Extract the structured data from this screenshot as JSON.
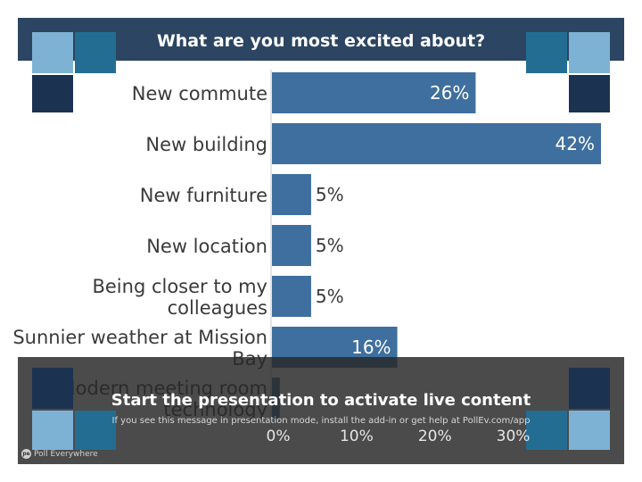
{
  "colors": {
    "banner": "#2b4562",
    "bar": "#3f6f9e",
    "tile_light": "#7eb2d4",
    "tile_mid": "#236d93",
    "tile_dark": "#1b3350",
    "overlay": "#3a3a3a"
  },
  "chart_data": {
    "type": "bar",
    "orientation": "horizontal",
    "title": "What are you most excited about?",
    "categories": [
      "New commute",
      "New building",
      "New furniture",
      "New location",
      "Being closer to my colleagues",
      "Sunnier weather at Mission Bay",
      "Modern meeting room technology"
    ],
    "category_lines": [
      [
        "New commute"
      ],
      [
        "New building"
      ],
      [
        "New furniture"
      ],
      [
        "New location"
      ],
      [
        "Being closer to my",
        "colleagues"
      ],
      [
        "Sunnier weather at Mission",
        "Bay"
      ],
      [
        "Modern meeting room",
        "technology"
      ]
    ],
    "values": [
      26,
      42,
      5,
      5,
      5,
      16,
      1
    ],
    "value_labels": [
      "26%",
      "42%",
      "5%",
      "5%",
      "5%",
      "16%",
      ""
    ],
    "xticks": [
      0,
      10,
      20,
      30
    ],
    "xtick_labels": [
      "0%",
      "10%",
      "20%",
      "30%"
    ],
    "xlim": [
      0,
      42
    ]
  },
  "overlay": {
    "title": "Start the presentation to activate live content",
    "subtitle": "If you see this message in presentation mode, install the add-in or get help at PollEv.com/app"
  },
  "brand": {
    "name": "Poll Everywhere",
    "icon_text": "pe"
  }
}
